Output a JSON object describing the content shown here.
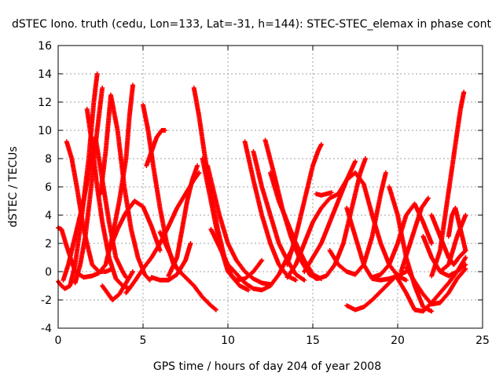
{
  "chart_data": {
    "type": "scatter",
    "title": "dSTEC Iono. truth (cedu, Lon=133, Lat=-31, h=144): STEC-STEC_elemax in phase cont",
    "xlabel": "GPS time / hours of day 204 of year 2008",
    "ylabel": "dSTEC  / TECUs",
    "xlim": [
      0,
      25
    ],
    "ylim": [
      -4,
      16
    ],
    "xticks": [
      0,
      5,
      10,
      15,
      20,
      25
    ],
    "yticks": [
      -4,
      -2,
      0,
      2,
      4,
      6,
      8,
      10,
      12,
      14,
      16
    ],
    "grid": true,
    "marker": "+",
    "color": "#ff0000",
    "series": [
      {
        "x": [
          0.0,
          0.2,
          0.4,
          0.7,
          1.0,
          1.4,
          1.8,
          2.1,
          2.3
        ],
        "y": [
          -0.7,
          -1.0,
          -1.2,
          -1.0,
          0.5,
          4.0,
          8.0,
          12.0,
          14.0
        ]
      },
      {
        "x": [
          0.0,
          0.2,
          0.5,
          1.0,
          1.5,
          2.0,
          2.4,
          2.8,
          3.2,
          3.6,
          4.0,
          4.2,
          4.4
        ],
        "y": [
          3.1,
          3.0,
          1.8,
          0.0,
          -0.4,
          -0.3,
          -0.1,
          0.5,
          2.5,
          5.0,
          8.0,
          11.0,
          13.2
        ]
      },
      {
        "x": [
          0.3,
          0.6,
          0.9,
          1.2,
          1.5,
          1.8,
          2.2,
          2.6,
          3.0,
          3.4,
          3.8,
          4.0
        ],
        "y": [
          -0.6,
          0.5,
          2.0,
          3.5,
          5.0,
          7.0,
          9.5,
          6.5,
          3.5,
          1.0,
          0.0,
          -0.4
        ]
      },
      {
        "x": [
          0.5,
          0.8,
          1.1,
          1.5,
          2.0,
          2.4,
          2.8,
          3.0,
          3.2
        ],
        "y": [
          9.2,
          8.0,
          6.0,
          3.0,
          0.5,
          0.0,
          0.0,
          0.1,
          0.2
        ]
      },
      {
        "x": [
          1.0,
          1.3,
          1.6,
          1.9,
          2.2,
          2.6
        ],
        "y": [
          -0.8,
          0.5,
          2.5,
          5.5,
          9.0,
          13.0
        ]
      },
      {
        "x": [
          1.7,
          2.0,
          2.3,
          2.6,
          3.0,
          3.4,
          3.8,
          4.2
        ],
        "y": [
          11.5,
          9.0,
          6.0,
          3.5,
          1.0,
          -0.5,
          -1.0,
          -1.2
        ]
      },
      {
        "x": [
          2.5,
          2.8,
          3.1,
          3.5,
          3.9,
          4.3,
          4.7,
          5.1,
          5.4
        ],
        "y": [
          5.5,
          8.5,
          12.5,
          10.0,
          6.0,
          3.0,
          1.0,
          -0.2,
          -0.6
        ]
      },
      {
        "x": [
          2.6,
          2.9,
          3.2,
          3.6,
          4.0,
          4.4
        ],
        "y": [
          -1.0,
          -1.5,
          -2.0,
          -1.6,
          -0.8,
          0.0
        ]
      },
      {
        "x": [
          3.0,
          3.5,
          4.0,
          4.5,
          5.0,
          5.5,
          6.0
        ],
        "y": [
          1.5,
          3.0,
          4.2,
          5.0,
          4.6,
          3.2,
          1.5
        ]
      },
      {
        "x": [
          4.0,
          4.5,
          5.0,
          5.5,
          6.0,
          6.5,
          7.0,
          7.5,
          8.0,
          8.3
        ],
        "y": [
          -1.5,
          -0.7,
          0.2,
          1.0,
          2.0,
          3.2,
          4.5,
          5.5,
          6.5,
          7.0
        ]
      },
      {
        "x": [
          5.0,
          5.3,
          5.6,
          6.0,
          6.4,
          6.8,
          7.2
        ],
        "y": [
          11.8,
          10.0,
          7.5,
          4.5,
          2.0,
          0.5,
          0.0
        ]
      },
      {
        "x": [
          5.2,
          5.5,
          5.8,
          6.1,
          6.3
        ],
        "y": [
          7.5,
          8.5,
          9.5,
          10.0,
          10.0
        ]
      },
      {
        "x": [
          5.5,
          6.0,
          6.5,
          7.0,
          7.5,
          7.8
        ],
        "y": [
          -0.4,
          -0.6,
          -0.6,
          -0.2,
          0.8,
          2.0
        ]
      },
      {
        "x": [
          6.0,
          6.5,
          7.0,
          7.5,
          8.0,
          8.5,
          9.0,
          9.3
        ],
        "y": [
          2.8,
          1.5,
          0.2,
          -0.4,
          -1.0,
          -1.8,
          -2.4,
          -2.7
        ]
      },
      {
        "x": [
          6.5,
          7.0,
          7.3,
          7.6,
          7.9,
          8.2
        ],
        "y": [
          -0.3,
          1.0,
          3.0,
          5.0,
          6.5,
          7.5
        ]
      },
      {
        "x": [
          8.0,
          8.3,
          8.6,
          9.0,
          9.4,
          9.8,
          10.2,
          10.7,
          11.2
        ],
        "y": [
          13.0,
          11.0,
          8.5,
          5.5,
          3.0,
          1.0,
          -0.3,
          -1.0,
          -1.3
        ]
      },
      {
        "x": [
          8.5,
          9.0,
          9.5,
          10.0,
          10.5,
          11.0,
          11.5,
          12.0
        ],
        "y": [
          8.0,
          5.0,
          2.0,
          0.0,
          -0.6,
          -0.5,
          0.0,
          0.8
        ]
      },
      {
        "x": [
          8.8,
          9.5,
          10.0,
          10.5,
          11.0,
          11.5,
          12.0,
          12.5
        ],
        "y": [
          7.5,
          4.0,
          2.0,
          0.8,
          0.0,
          -0.5,
          -0.8,
          -0.9
        ]
      },
      {
        "x": [
          11.0,
          11.5,
          12.0,
          12.5,
          13.0,
          13.5,
          14.0
        ],
        "y": [
          9.2,
          6.5,
          4.0,
          2.0,
          0.5,
          -0.3,
          -0.6
        ]
      },
      {
        "x": [
          11.5,
          12.0,
          12.5,
          13.0,
          13.5,
          14.0,
          14.5
        ],
        "y": [
          8.5,
          6.0,
          4.0,
          2.0,
          0.8,
          -0.2,
          -0.6
        ]
      },
      {
        "x": [
          12.2,
          12.7,
          13.2,
          13.7,
          14.2,
          14.7,
          15.2
        ],
        "y": [
          9.3,
          7.0,
          4.5,
          2.5,
          1.0,
          0.0,
          -0.5
        ]
      },
      {
        "x": [
          12.5,
          13.0,
          13.5,
          14.0,
          14.5,
          15.0,
          15.5
        ],
        "y": [
          7.0,
          5.0,
          3.5,
          2.0,
          0.8,
          -0.2,
          -0.5
        ]
      },
      {
        "x": [
          9.0,
          10.0,
          11.0,
          11.5,
          12.0,
          12.5,
          13.0,
          13.5,
          14.0
        ],
        "y": [
          3.0,
          0.5,
          -0.8,
          -1.2,
          -1.3,
          -1.0,
          -0.2,
          1.0,
          2.0
        ]
      },
      {
        "x": [
          13.5,
          14.0,
          14.5,
          15.0,
          15.3,
          15.5
        ],
        "y": [
          0.5,
          2.5,
          5.0,
          7.5,
          8.5,
          9.0
        ]
      },
      {
        "x": [
          13.5,
          14.0,
          14.5,
          15.0,
          15.5,
          16.0,
          16.5
        ],
        "y": [
          -0.4,
          0.5,
          2.0,
          3.5,
          4.5,
          5.2,
          5.5
        ]
      },
      {
        "x": [
          14.5,
          15.0,
          15.5,
          16.0,
          16.5,
          17.0,
          17.5
        ],
        "y": [
          0.0,
          1.0,
          2.0,
          3.5,
          5.0,
          6.5,
          7.8
        ]
      },
      {
        "x": [
          15.2,
          15.5,
          15.8,
          16.1
        ],
        "y": [
          5.5,
          5.4,
          5.5,
          5.6
        ]
      },
      {
        "x": [
          14.8,
          15.3,
          15.8,
          16.3,
          16.8,
          17.3,
          17.8,
          18.1
        ],
        "y": [
          -0.2,
          -0.5,
          -0.3,
          0.5,
          2.0,
          4.5,
          7.0,
          8.0
        ]
      },
      {
        "x": [
          16.5,
          17.0,
          17.5,
          18.0,
          18.5,
          19.0,
          19.5,
          20.0,
          20.5
        ],
        "y": [
          5.5,
          6.5,
          7.0,
          6.2,
          4.0,
          2.0,
          0.5,
          -0.3,
          -0.6
        ]
      },
      {
        "x": [
          16.0,
          16.5,
          17.0,
          17.5,
          18.0,
          18.5,
          19.0,
          19.3
        ],
        "y": [
          1.5,
          0.5,
          0.0,
          -0.2,
          0.5,
          2.5,
          5.5,
          7.0
        ]
      },
      {
        "x": [
          17.0,
          17.5,
          18.0,
          18.5,
          19.0,
          19.5,
          20.0,
          20.5
        ],
        "y": [
          4.5,
          2.5,
          0.5,
          -0.5,
          -0.6,
          -0.5,
          -0.3,
          0.0
        ]
      },
      {
        "x": [
          17.0,
          17.5,
          18.0,
          18.5,
          19.0,
          19.5,
          20.0
        ],
        "y": [
          -2.4,
          -2.7,
          -2.5,
          -2.0,
          -1.4,
          -0.8,
          -0.2
        ]
      },
      {
        "x": [
          18.5,
          19.0,
          19.5,
          20.0,
          20.5,
          21.0,
          21.5,
          22.0
        ],
        "y": [
          -0.4,
          -0.2,
          0.5,
          2.0,
          4.0,
          4.8,
          3.5,
          2.0
        ]
      },
      {
        "x": [
          19.5,
          20.0,
          20.5,
          21.0,
          21.5,
          22.0
        ],
        "y": [
          6.0,
          4.0,
          1.0,
          -1.0,
          -2.5,
          -2.8
        ]
      },
      {
        "x": [
          20.2,
          20.6,
          21.0,
          21.4,
          21.8
        ],
        "y": [
          0.0,
          1.5,
          3.0,
          4.5,
          5.2
        ]
      },
      {
        "x": [
          20.0,
          20.5,
          21.0,
          21.5,
          22.0,
          22.5,
          23.0,
          23.5,
          24.0
        ],
        "y": [
          -0.5,
          -1.5,
          -2.7,
          -2.8,
          -2.2,
          -1.5,
          -0.8,
          0.0,
          0.5
        ]
      },
      {
        "x": [
          20.5,
          21.0,
          21.5,
          22.0,
          22.5,
          23.0,
          23.5,
          24.0
        ],
        "y": [
          0.3,
          -0.7,
          -1.6,
          -2.3,
          -2.2,
          -1.5,
          -0.5,
          0.2
        ]
      },
      {
        "x": [
          21.5,
          22.0,
          22.5,
          23.0,
          23.5,
          24.0
        ],
        "y": [
          2.5,
          1.0,
          0.0,
          -0.3,
          0.0,
          1.0
        ]
      },
      {
        "x": [
          22.0,
          22.5,
          23.0,
          23.3,
          23.6,
          24.0
        ],
        "y": [
          4.0,
          2.5,
          1.0,
          0.5,
          1.0,
          1.5
        ]
      },
      {
        "x": [
          22.5,
          23.0,
          23.5,
          24.0
        ],
        "y": [
          0.0,
          0.5,
          2.5,
          4.0
        ]
      },
      {
        "x": [
          22.0,
          22.5,
          22.8,
          23.1,
          23.4,
          23.7,
          23.9
        ],
        "y": [
          -0.3,
          1.5,
          4.0,
          6.5,
          9.0,
          11.5,
          12.7
        ]
      },
      {
        "x": [
          23.0,
          23.2,
          23.4,
          23.6,
          23.8,
          24.0
        ],
        "y": [
          2.5,
          4.0,
          4.5,
          3.5,
          2.5,
          1.5
        ]
      }
    ]
  }
}
